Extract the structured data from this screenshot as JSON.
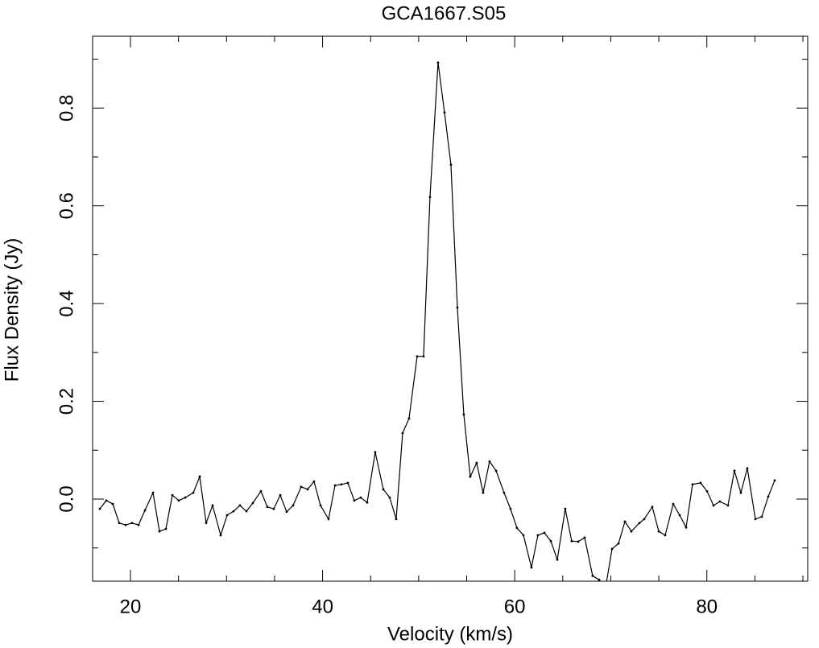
{
  "chart_data": {
    "type": "line",
    "title": "GCA1667.S05",
    "xlabel": "Velocity (km/s)",
    "ylabel": "Flux Density (Jy)",
    "x": [
      16.81,
      17.49,
      18.16,
      18.83,
      19.5,
      20.17,
      20.84,
      21.51,
      22.35,
      23.02,
      23.69,
      24.36,
      25.03,
      25.7,
      26.54,
      27.21,
      27.88,
      28.55,
      29.39,
      30.06,
      30.73,
      31.4,
      32.07,
      32.74,
      33.58,
      34.25,
      34.92,
      35.59,
      36.26,
      36.93,
      37.77,
      38.44,
      39.11,
      39.78,
      40.62,
      41.29,
      41.96,
      42.63,
      43.3,
      43.97,
      44.64,
      45.48,
      46.32,
      46.99,
      47.66,
      48.33,
      49.0,
      49.84,
      50.51,
      51.18,
      52.02,
      52.69,
      53.36,
      54.03,
      54.7,
      55.37,
      56.04,
      56.71,
      57.38,
      58.06,
      58.89,
      59.56,
      60.23,
      60.91,
      61.74,
      62.41,
      63.08,
      63.76,
      64.43,
      65.26,
      65.93,
      66.61,
      67.28,
      68.11,
      68.78,
      69.46,
      70.13,
      70.8,
      71.47,
      72.14,
      72.98,
      73.48,
      74.32,
      74.99,
      75.66,
      76.5,
      77.17,
      77.84,
      78.51,
      79.35,
      80.02,
      80.69,
      81.36,
      82.2,
      82.87,
      83.54,
      84.21,
      85.05,
      85.72,
      86.39,
      87.06
    ],
    "series": [
      {
        "color": "#000000",
        "values": [
          -0.02,
          -0.003,
          -0.01,
          -0.049,
          -0.053,
          -0.049,
          -0.053,
          -0.023,
          0.013,
          -0.066,
          -0.061,
          0.008,
          -0.003,
          0.003,
          0.013,
          0.046,
          -0.049,
          -0.013,
          -0.074,
          -0.033,
          -0.025,
          -0.013,
          -0.025,
          -0.008,
          0.016,
          -0.016,
          -0.02,
          0.008,
          -0.026,
          -0.013,
          0.025,
          0.02,
          0.036,
          -0.013,
          -0.041,
          0.028,
          0.03,
          0.033,
          -0.003,
          0.003,
          -0.007,
          0.096,
          0.02,
          0.003,
          -0.041,
          0.135,
          0.165,
          0.292,
          0.292,
          0.618,
          0.893,
          0.791,
          0.684,
          0.392,
          0.173,
          0.046,
          0.074,
          0.013,
          0.077,
          0.058,
          0.013,
          -0.02,
          -0.059,
          -0.074,
          -0.14,
          -0.074,
          -0.069,
          -0.086,
          -0.124,
          -0.02,
          -0.086,
          -0.087,
          -0.079,
          -0.157,
          -0.165,
          -0.181,
          -0.102,
          -0.091,
          -0.046,
          -0.066,
          -0.049,
          -0.041,
          -0.016,
          -0.066,
          -0.074,
          -0.01,
          -0.033,
          -0.058,
          0.03,
          0.033,
          0.016,
          -0.013,
          -0.005,
          -0.013,
          0.058,
          0.013,
          0.063,
          -0.041,
          -0.036,
          0.005,
          0.038
        ]
      }
    ],
    "xlim": [
      16.06,
      90.5
    ],
    "ylim": [
      -0.168,
      0.947
    ],
    "xticks": [
      20,
      40,
      60,
      80
    ],
    "xminorticks": [
      25,
      30,
      35,
      45,
      50,
      55,
      65,
      70,
      75,
      85,
      90
    ],
    "yticks": [
      {
        "value": 0,
        "label": "0.0"
      },
      0.2,
      0.4,
      0.6,
      0.8
    ],
    "yminorticks": [
      -0.1,
      0.1,
      0.3,
      0.5,
      0.7,
      0.9
    ]
  }
}
